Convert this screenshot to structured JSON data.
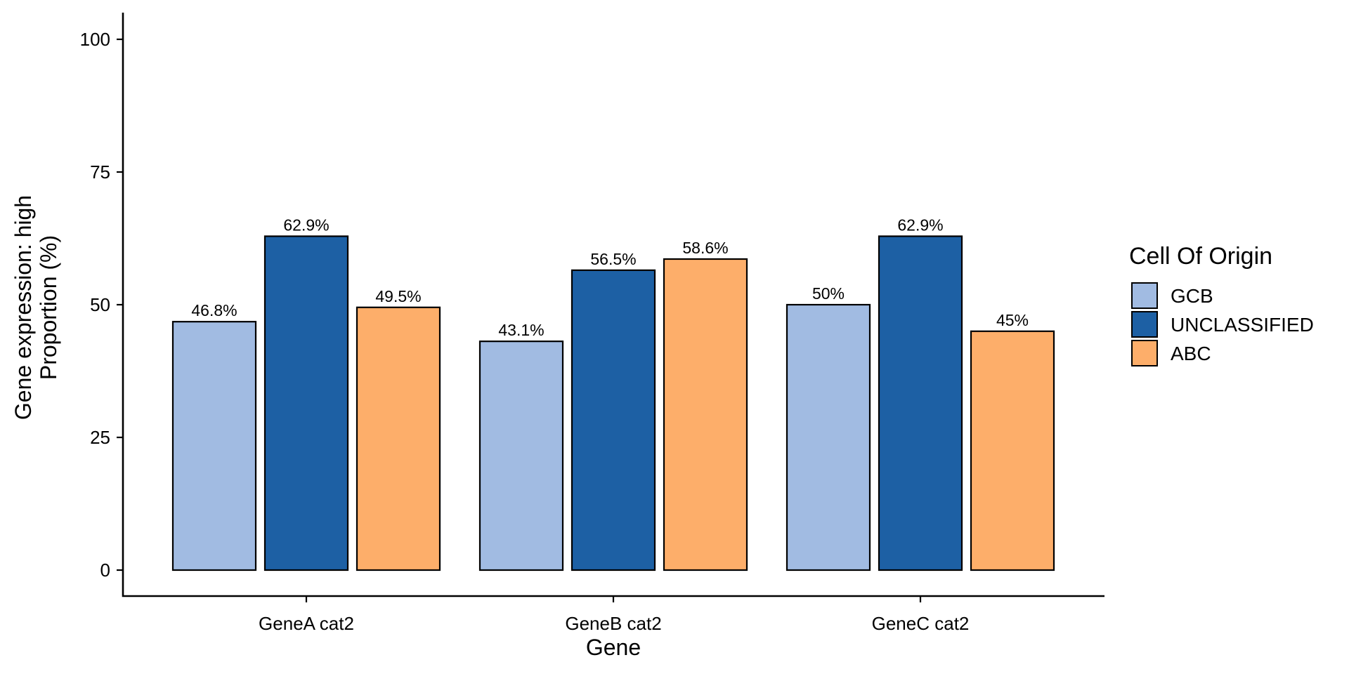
{
  "chart_data": {
    "type": "bar",
    "categories": [
      "GeneA cat2",
      "GeneB cat2",
      "GeneC cat2"
    ],
    "series": [
      {
        "name": "GCB",
        "values": [
          46.8,
          43.1,
          50
        ],
        "labels": [
          "46.8%",
          "43.1%",
          "50%"
        ],
        "color": "#A1BBE2"
      },
      {
        "name": "UNCLASSIFIED",
        "values": [
          62.9,
          56.5,
          62.9
        ],
        "labels": [
          "62.9%",
          "56.5%",
          "62.9%"
        ],
        "color": "#1D60A4"
      },
      {
        "name": "ABC",
        "values": [
          49.5,
          58.6,
          45
        ],
        "labels": [
          "49.5%",
          "58.6%",
          "45%"
        ],
        "color": "#FDAE6A"
      }
    ],
    "xlabel": "Gene",
    "ylabel": [
      "Gene expression: high",
      "Proportion (%)"
    ],
    "yticks": [
      0,
      25,
      50,
      75,
      100
    ],
    "ylim": [
      0,
      105
    ],
    "legend": {
      "title": "Cell Of Origin",
      "position": "right"
    },
    "grid": false
  }
}
